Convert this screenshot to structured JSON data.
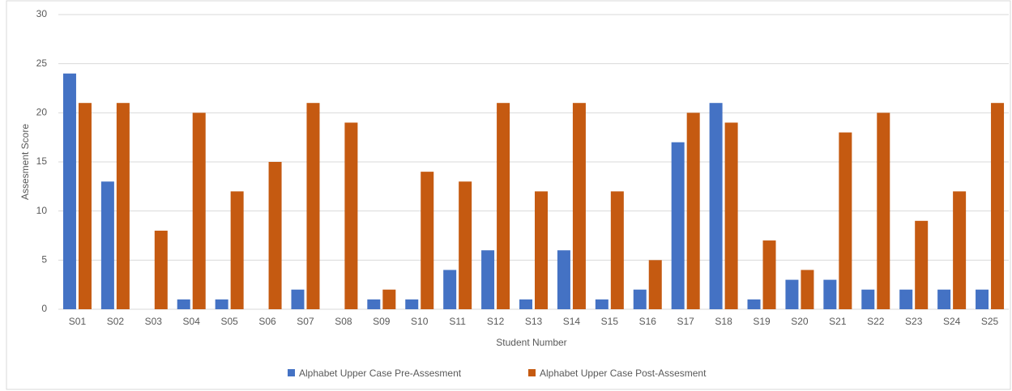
{
  "chart_data": {
    "type": "bar",
    "x_label": "Student Number",
    "y_label": "Assesment Score",
    "categories": [
      "S01",
      "S02",
      "S03",
      "S04",
      "S05",
      "S06",
      "S07",
      "S08",
      "S09",
      "S10",
      "S11",
      "S12",
      "S13",
      "S14",
      "S15",
      "S16",
      "S17",
      "S18",
      "S19",
      "S20",
      "S21",
      "S22",
      "S23",
      "S24",
      "S25"
    ],
    "series": [
      {
        "name": "Alphabet Upper Case Pre-Assesment",
        "color": "#4472c4",
        "values": [
          24,
          13,
          0,
          1,
          1,
          0,
          2,
          0,
          1,
          1,
          4,
          6,
          1,
          6,
          1,
          2,
          17,
          21,
          1,
          3,
          3,
          2,
          2,
          2,
          2
        ]
      },
      {
        "name": "Alphabet Upper Case Post-Assesment",
        "color": "#c55a11",
        "values": [
          21,
          21,
          8,
          20,
          12,
          15,
          21,
          19,
          2,
          14,
          13,
          21,
          12,
          21,
          12,
          5,
          20,
          19,
          7,
          4,
          18,
          20,
          9,
          12,
          21
        ]
      }
    ],
    "ylim": [
      0,
      30
    ],
    "yticks": [
      0,
      5,
      10,
      15,
      20,
      25,
      30
    ],
    "grid": true,
    "legend": "bottom"
  }
}
